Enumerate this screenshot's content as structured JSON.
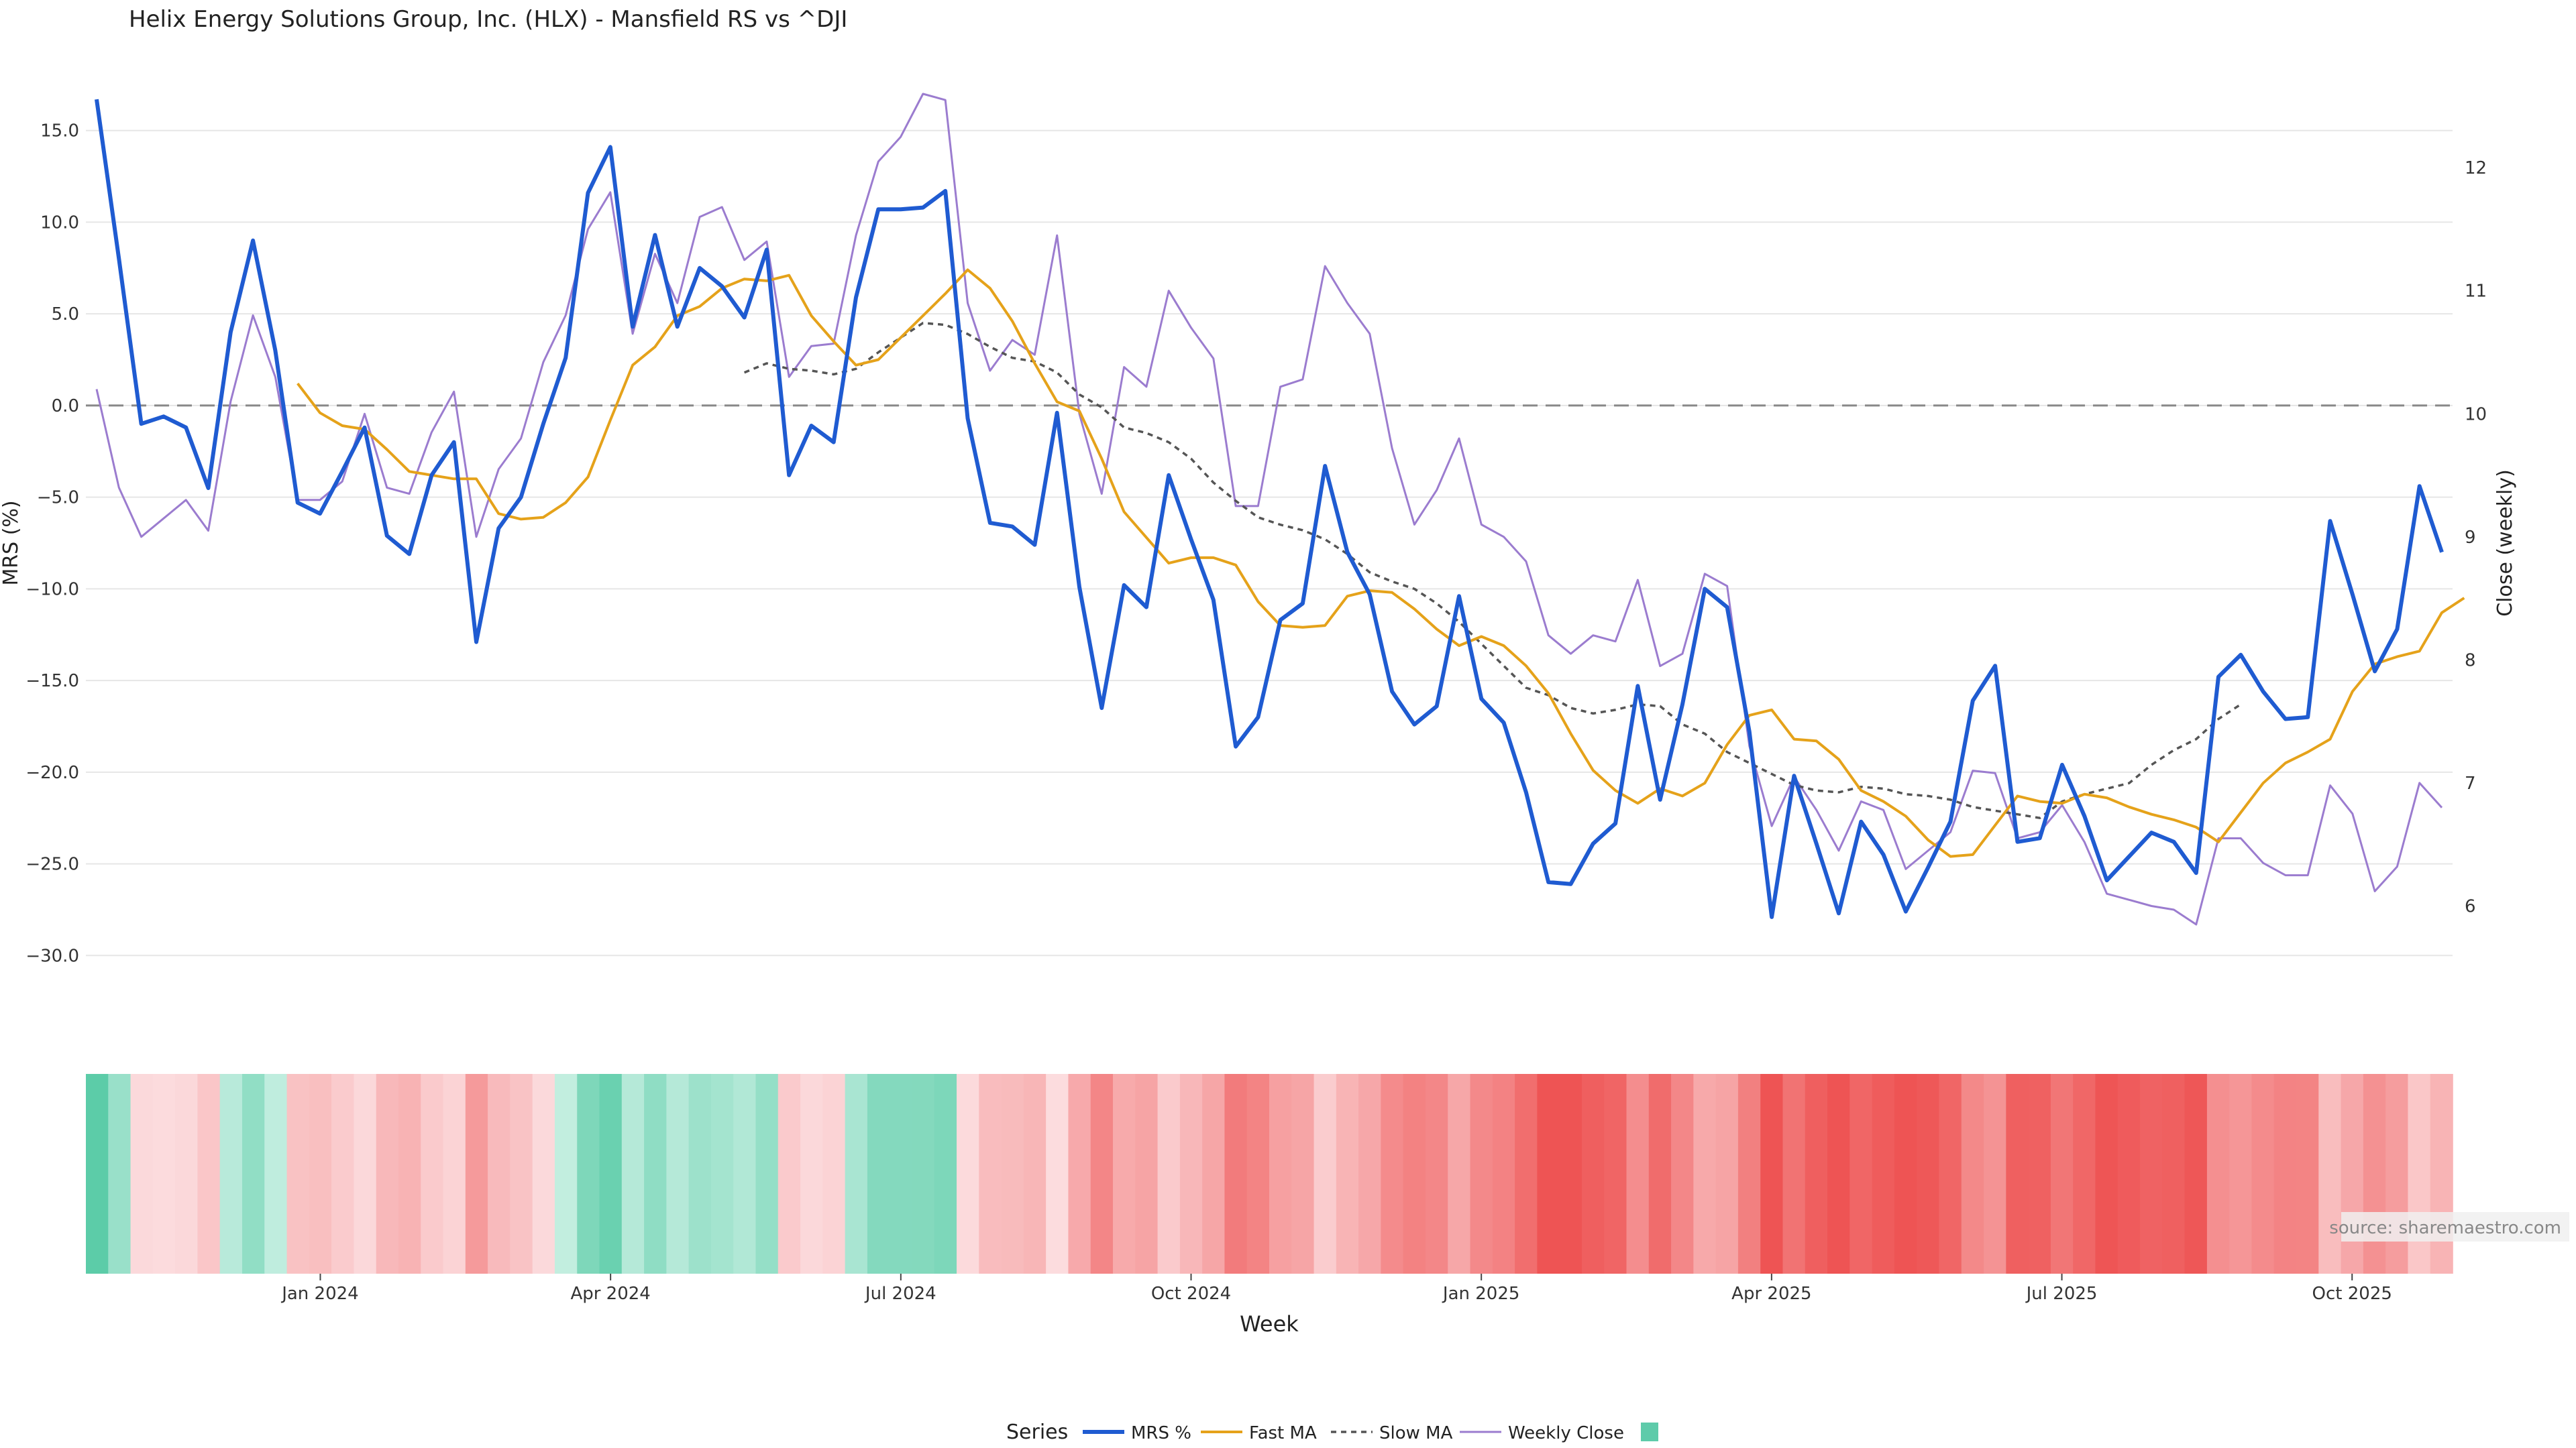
{
  "chart_data": {
    "type": "line",
    "title": "Helix Energy Solutions Group, Inc. (HLX) - Mansfield RS vs ^DJI",
    "xlabel": "Week",
    "ylabel_left": "MRS (%)",
    "ylabel_right": "Close (weekly)",
    "source": "source: sharemaestro.com",
    "legend_title": "Series",
    "legend": [
      "MRS %",
      "Fast MA",
      "Slow MA",
      "Weekly Close",
      ""
    ],
    "ylim_left": [
      -32,
      17
    ],
    "ylim_right": [
      5.3,
      12.6
    ],
    "y_ticks_left": [
      "15.0",
      "10.0",
      "5.0",
      "0.0",
      "−5.0",
      "−10.0",
      "−15.0",
      "−20.0",
      "−25.0",
      "−30.0"
    ],
    "y_ticks_right": [
      "12",
      "11",
      "10",
      "9",
      "8",
      "7",
      "6"
    ],
    "x_ticks": [
      {
        "label": "Jan 2024",
        "week": 10
      },
      {
        "label": "Apr 2024",
        "week": 23
      },
      {
        "label": "Jul 2024",
        "week": 36
      },
      {
        "label": "Oct 2024",
        "week": 49
      },
      {
        "label": "Jan 2025",
        "week": 62
      },
      {
        "label": "Apr 2025",
        "week": 75
      },
      {
        "label": "Jul 2025",
        "week": 88
      },
      {
        "label": "Oct 2025",
        "week": 101
      }
    ],
    "colors": {
      "mrs": "#1f5bd1",
      "fast": "#e5a21a",
      "slow": "#555555",
      "close": "#9b7ccf",
      "zero": "#888888",
      "grid": "#e6e6e6",
      "legend_square": "#5ecbaa"
    },
    "series": [
      {
        "name": "MRS %",
        "values": [
          16.7,
          8.0,
          -1.0,
          -0.6,
          -1.2,
          -4.5,
          4.0,
          9.0,
          3.0,
          -5.3,
          -5.9,
          -3.6,
          -1.2,
          -7.1,
          -8.1,
          -3.8,
          -2.0,
          -12.9,
          -6.7,
          -5.0,
          -1.0,
          2.6,
          11.6,
          14.1,
          4.3,
          9.3,
          4.3,
          7.5,
          6.5,
          4.8,
          8.5,
          -3.8,
          -1.1,
          -2.0,
          5.9,
          10.7,
          10.7,
          10.8,
          11.7,
          -0.7,
          -6.4,
          -6.6,
          -7.6,
          -0.4,
          -9.9,
          -16.5,
          -9.8,
          -11.0,
          -3.8,
          -7.3,
          -10.6,
          -18.6,
          -17.0,
          -11.7,
          -10.8,
          -3.3,
          -8.0,
          -10.3,
          -15.6,
          -17.4,
          -16.4,
          -10.4,
          -16.0,
          -17.3,
          -21.1,
          -26.0,
          -26.1,
          -23.9,
          -22.8,
          -15.3,
          -21.5,
          -16.3,
          -10.0,
          -11.0,
          -17.8,
          -27.9,
          -20.2,
          -23.9,
          -27.7,
          -22.7,
          -24.5,
          -27.6,
          -25.2,
          -22.7,
          -16.1,
          -14.2,
          -23.8,
          -23.6,
          -19.6,
          -22.4,
          -25.9,
          -24.6,
          -23.3,
          -23.8,
          -25.5,
          -14.8,
          -13.6,
          -15.6,
          -17.1,
          -17.0,
          -6.3,
          -10.3,
          -14.5,
          -12.2,
          -4.4,
          -8.0
        ]
      },
      {
        "name": "Fast MA",
        "start": 9,
        "values": [
          1.2,
          -0.4,
          -1.1,
          -1.3,
          -2.4,
          -3.6,
          -3.8,
          -4.0,
          -4.0,
          -5.9,
          -6.2,
          -6.1,
          -5.3,
          -3.9,
          -0.8,
          2.2,
          3.2,
          4.9,
          5.4,
          6.4,
          6.9,
          6.8,
          7.1,
          4.9,
          3.5,
          2.2,
          2.5,
          3.7,
          4.9,
          6.1,
          7.4,
          6.4,
          4.6,
          2.3,
          0.2,
          -0.3,
          -2.9,
          -5.8,
          -7.2,
          -8.6,
          -8.3,
          -8.3,
          -8.7,
          -10.7,
          -12.0,
          -12.1,
          -12.0,
          -10.4,
          -10.1,
          -10.2,
          -11.1,
          -12.2,
          -13.1,
          -12.6,
          -13.1,
          -14.2,
          -15.7,
          -17.9,
          -19.9,
          -21.0,
          -21.7,
          -20.9,
          -21.3,
          -20.6,
          -18.5,
          -16.9,
          -16.6,
          -18.2,
          -18.3,
          -19.3,
          -21.0,
          -21.6,
          -22.4,
          -23.7,
          -24.6,
          -24.5,
          -22.9,
          -21.3,
          -21.6,
          -21.7,
          -21.2,
          -21.4,
          -21.9,
          -22.3,
          -22.6,
          -23.0,
          -23.8,
          -22.2,
          -20.6,
          -19.5,
          -18.9,
          -18.2,
          -15.6,
          -14.1,
          -13.7,
          -13.4,
          -11.3,
          -10.5
        ]
      },
      {
        "name": "Slow MA",
        "start": 29,
        "values": [
          1.8,
          2.3,
          2.0,
          1.9,
          1.7,
          2.0,
          2.9,
          3.7,
          4.5,
          4.4,
          3.9,
          3.2,
          2.6,
          2.4,
          1.8,
          0.6,
          -0.1,
          -1.2,
          -1.5,
          -2.0,
          -2.9,
          -4.2,
          -5.2,
          -6.1,
          -6.5,
          -6.8,
          -7.3,
          -8.1,
          -9.1,
          -9.6,
          -10.0,
          -10.8,
          -11.8,
          -13.0,
          -14.2,
          -15.4,
          -15.8,
          -16.5,
          -16.8,
          -16.6,
          -16.3,
          -16.4,
          -17.4,
          -17.9,
          -18.9,
          -19.5,
          -20.1,
          -20.7,
          -21.0,
          -21.1,
          -20.8,
          -20.9,
          -21.2,
          -21.3,
          -21.5,
          -21.9,
          -22.1,
          -22.3,
          -22.5,
          -21.6,
          -21.2,
          -20.9,
          -20.6,
          -19.6,
          -18.8,
          -18.2,
          -17.1,
          -16.3
        ]
      },
      {
        "name": "Weekly Close",
        "values": [
          10.2,
          9.4,
          9.0,
          9.15,
          9.3,
          9.05,
          10.1,
          10.8,
          10.3,
          9.3,
          9.3,
          9.45,
          10.0,
          9.4,
          9.35,
          9.85,
          10.18,
          9.0,
          9.55,
          9.8,
          10.42,
          10.8,
          11.5,
          11.8,
          10.65,
          11.3,
          10.9,
          11.6,
          11.68,
          11.25,
          11.4,
          10.3,
          10.55,
          10.57,
          11.45,
          12.05,
          12.25,
          12.6,
          12.55,
          10.9,
          10.35,
          10.6,
          10.48,
          11.45,
          10.0,
          9.35,
          10.38,
          10.22,
          11.0,
          10.7,
          10.45,
          9.25,
          9.25,
          10.22,
          10.28,
          11.2,
          10.9,
          10.65,
          9.72,
          9.1,
          9.38,
          9.8,
          9.1,
          9.0,
          8.8,
          8.2,
          8.05,
          8.2,
          8.15,
          8.65,
          7.95,
          8.05,
          8.7,
          8.6,
          7.3,
          6.65,
          7.05,
          6.78,
          6.45,
          6.85,
          6.78,
          6.3,
          6.45,
          6.6,
          7.1,
          7.08,
          6.55,
          6.6,
          6.82,
          6.52,
          6.1,
          6.05,
          6.0,
          5.97,
          5.85,
          6.55,
          6.55,
          6.35,
          6.25,
          6.25,
          6.98,
          6.75,
          6.12,
          6.32,
          7.0,
          6.8
        ]
      }
    ],
    "heatmap": {
      "label": "MRS regime strip",
      "values": [
        16.7,
        8.0,
        -1.0,
        -0.6,
        -1.2,
        -4.5,
        4.0,
        9.0,
        3.0,
        -5.3,
        -5.9,
        -3.6,
        -1.2,
        -7.1,
        -8.1,
        -3.8,
        -2.0,
        -12.9,
        -6.7,
        -5.0,
        -1.0,
        2.6,
        11.6,
        14.1,
        4.3,
        9.3,
        4.3,
        7.5,
        6.5,
        4.8,
        8.5,
        -3.8,
        -1.1,
        -2.0,
        5.9,
        10.7,
        10.7,
        10.8,
        11.7,
        -0.7,
        -6.4,
        -6.6,
        -7.6,
        -0.4,
        -9.9,
        -16.5,
        -9.8,
        -11.0,
        -3.8,
        -7.3,
        -10.6,
        -18.6,
        -17.0,
        -11.7,
        -10.8,
        -3.3,
        -8.0,
        -10.3,
        -15.6,
        -17.4,
        -16.4,
        -10.4,
        -16.0,
        -17.3,
        -21.1,
        -26.0,
        -26.1,
        -23.9,
        -22.8,
        -15.3,
        -21.5,
        -16.3,
        -10.0,
        -11.0,
        -17.8,
        -27.9,
        -20.2,
        -23.9,
        -27.7,
        -22.7,
        -24.5,
        -27.6,
        -25.2,
        -22.7,
        -16.1,
        -14.2,
        -23.8,
        -23.6,
        -19.6,
        -22.4,
        -25.9,
        -24.6,
        -23.3,
        -23.8,
        -25.5,
        -14.8,
        -13.6,
        -15.6,
        -17.1,
        -17.0,
        -6.3,
        -10.3,
        -14.5,
        -12.2,
        -4.4,
        -8.0
      ]
    }
  }
}
